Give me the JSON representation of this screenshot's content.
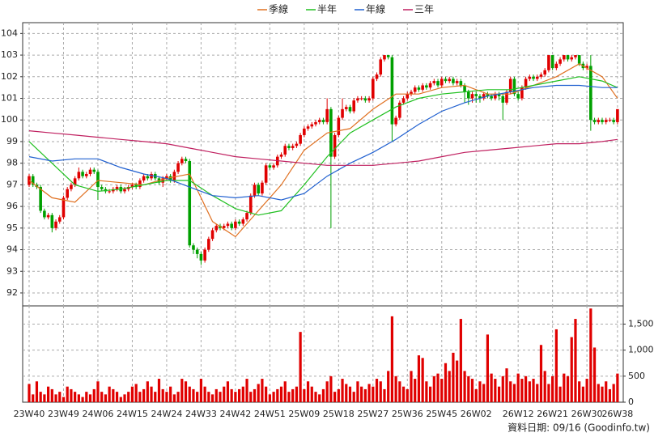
{
  "chart_data": [
    {
      "type": "candlestick",
      "categories": [
        "23W40",
        null,
        null,
        null,
        null,
        null,
        null,
        null,
        null,
        "23W49",
        null,
        null,
        null,
        null,
        null,
        null,
        null,
        null,
        "24W06",
        null,
        null,
        null,
        null,
        null,
        null,
        null,
        null,
        "24W15",
        null,
        null,
        null,
        null,
        null,
        null,
        null,
        null,
        "24W24",
        null,
        null,
        null,
        null,
        null,
        null,
        null,
        null,
        "24W33",
        null,
        null,
        null,
        null,
        null,
        null,
        null,
        null,
        "24W42",
        null,
        null,
        null,
        null,
        null,
        null,
        null,
        null,
        "24W51",
        null,
        null,
        null,
        null,
        null,
        null,
        null,
        null,
        "25W09",
        null,
        null,
        null,
        null,
        null,
        null,
        null,
        null,
        "25W18",
        null,
        null,
        null,
        null,
        null,
        null,
        null,
        null,
        "25W27",
        null,
        null,
        null,
        null,
        null,
        null,
        null,
        null,
        "25W36",
        null,
        null,
        null,
        null,
        null,
        null,
        null,
        null,
        "25W45",
        null,
        null,
        null,
        null,
        null,
        null,
        null,
        null,
        "26W02",
        null,
        null,
        null,
        null,
        null,
        null,
        null,
        null,
        null,
        null,
        "26W12",
        null,
        null,
        null,
        null,
        null,
        null,
        null,
        null,
        "26W21",
        null,
        null,
        null,
        null,
        null,
        null,
        null,
        null,
        "26W30",
        null,
        null,
        null,
        null,
        null,
        null,
        null,
        "26W38"
      ],
      "open": [
        97.0,
        97.4,
        97.0,
        96.9,
        95.8,
        95.5,
        95.6,
        95.0,
        95.3,
        95.5,
        96.4,
        96.8,
        97.0,
        97.3,
        97.6,
        97.4,
        97.5,
        97.7,
        97.6,
        96.9,
        96.8,
        96.7,
        96.7,
        96.8,
        96.9,
        96.7,
        96.8,
        96.9,
        97.0,
        96.9,
        97.2,
        97.4,
        97.3,
        97.5,
        97.3,
        97.1,
        97.3,
        97.4,
        97.2,
        97.6,
        98.0,
        98.2,
        98.1,
        94.2,
        94.0,
        93.8,
        93.5,
        94.0,
        94.5,
        94.9,
        95.1,
        95.0,
        95.1,
        95.2,
        95.0,
        95.3,
        95.2,
        95.4,
        95.7,
        96.5,
        97.0,
        96.6,
        97.1,
        97.9,
        97.8,
        97.9,
        98.3,
        98.4,
        98.8,
        98.7,
        98.8,
        98.9,
        99.3,
        99.6,
        99.7,
        99.8,
        99.9,
        100.0,
        99.9,
        100.5,
        98.3,
        99.3,
        100.1,
        100.5,
        100.6,
        100.4,
        100.9,
        101.0,
        101.0,
        100.9,
        101.0,
        101.9,
        102.1,
        102.8,
        103.0,
        102.9,
        99.8,
        100.1,
        100.8,
        101.0,
        101.2,
        101.3,
        101.5,
        101.4,
        101.6,
        101.5,
        101.7,
        101.8,
        101.6,
        101.9,
        101.8,
        101.9,
        101.7,
        101.8,
        101.6,
        101.3,
        101.0,
        101.2,
        101.1,
        101.0,
        101.2,
        101.1,
        101.0,
        101.2,
        101.1,
        100.8,
        101.3,
        101.9,
        101.2,
        101.0,
        101.5,
        101.9,
        102.0,
        101.9,
        102.0,
        102.1,
        102.3,
        103.0,
        102.4,
        102.6,
        102.8,
        103.0,
        102.8,
        102.9,
        103.0,
        102.6,
        102.4,
        102.5,
        100.0,
        99.9,
        100.0,
        99.9,
        100.0,
        100.0,
        99.9
      ],
      "high": [
        97.5,
        97.5,
        97.1,
        97.0,
        95.9,
        95.7,
        95.7,
        95.4,
        95.6,
        96.5,
        96.9,
        97.1,
        97.4,
        97.8,
        97.7,
        97.6,
        97.8,
        97.8,
        97.7,
        97.0,
        96.9,
        96.8,
        96.9,
        97.0,
        97.0,
        96.9,
        97.0,
        97.1,
        97.1,
        97.3,
        97.5,
        97.5,
        97.6,
        97.6,
        97.4,
        97.4,
        97.5,
        97.5,
        97.7,
        98.1,
        98.3,
        98.3,
        98.2,
        94.3,
        94.1,
        93.9,
        94.1,
        94.6,
        95.0,
        95.2,
        95.2,
        95.2,
        95.3,
        95.3,
        95.4,
        95.4,
        95.5,
        95.8,
        96.6,
        97.1,
        97.1,
        97.2,
        98.0,
        98.0,
        98.0,
        98.4,
        98.5,
        98.9,
        98.9,
        98.9,
        99.0,
        99.4,
        99.7,
        99.8,
        99.9,
        100.0,
        100.1,
        100.1,
        101.0,
        100.6,
        99.4,
        100.2,
        101.0,
        100.7,
        100.7,
        101.0,
        101.1,
        101.1,
        101.1,
        101.1,
        102.0,
        102.2,
        102.9,
        103.0,
        103.0,
        103.0,
        100.2,
        100.9,
        101.1,
        101.3,
        101.4,
        101.6,
        101.6,
        101.7,
        101.7,
        101.8,
        101.9,
        101.9,
        102.0,
        102.0,
        102.0,
        102.0,
        101.9,
        101.9,
        101.7,
        101.4,
        101.3,
        101.3,
        101.2,
        101.3,
        101.3,
        101.2,
        101.3,
        101.3,
        101.2,
        101.4,
        102.0,
        102.0,
        101.3,
        101.6,
        102.0,
        102.1,
        102.1,
        102.1,
        102.2,
        102.4,
        103.0,
        103.0,
        102.7,
        102.9,
        103.0,
        103.0,
        103.0,
        103.0,
        103.0,
        102.7,
        102.6,
        103.0,
        100.1,
        100.1,
        100.1,
        100.1,
        100.1,
        100.1,
        100.5
      ],
      "low": [
        96.9,
        96.9,
        96.8,
        95.7,
        95.4,
        95.4,
        94.8,
        94.9,
        95.2,
        95.4,
        96.3,
        96.7,
        96.9,
        97.2,
        97.3,
        97.3,
        97.4,
        97.5,
        96.3,
        96.7,
        96.6,
        96.6,
        96.6,
        96.7,
        96.6,
        96.6,
        96.7,
        96.8,
        96.8,
        96.8,
        97.1,
        97.2,
        97.2,
        97.2,
        97.0,
        96.9,
        97.2,
        97.1,
        97.1,
        97.5,
        97.9,
        98.0,
        94.1,
        93.8,
        93.6,
        93.3,
        93.4,
        93.9,
        94.4,
        94.8,
        94.9,
        94.9,
        95.0,
        94.9,
        94.9,
        95.1,
        95.1,
        95.3,
        95.6,
        96.4,
        96.5,
        96.5,
        97.0,
        97.7,
        97.7,
        97.8,
        98.2,
        98.3,
        98.6,
        98.6,
        98.7,
        98.8,
        99.2,
        99.5,
        99.6,
        99.7,
        99.8,
        99.8,
        99.8,
        95.0,
        98.2,
        99.2,
        100.0,
        100.4,
        100.3,
        100.3,
        100.8,
        100.9,
        100.8,
        100.8,
        100.9,
        101.8,
        102.0,
        102.7,
        102.8,
        99.0,
        99.7,
        100.0,
        100.7,
        100.9,
        101.1,
        101.2,
        101.3,
        101.3,
        101.4,
        101.4,
        101.6,
        101.5,
        101.5,
        101.7,
        101.7,
        101.6,
        101.6,
        101.5,
        100.8,
        100.7,
        100.8,
        100.8,
        100.8,
        100.9,
        101.0,
        100.9,
        100.9,
        100.9,
        100.0,
        100.7,
        101.2,
        101.1,
        100.9,
        100.9,
        101.4,
        101.8,
        101.8,
        101.8,
        101.9,
        102.0,
        102.2,
        102.3,
        102.3,
        102.5,
        102.7,
        102.7,
        102.7,
        102.8,
        102.5,
        102.3,
        102.3,
        99.5,
        99.8,
        99.8,
        99.8,
        99.8,
        99.9,
        99.8,
        99.8
      ],
      "close": [
        97.4,
        97.0,
        96.9,
        95.8,
        95.5,
        95.6,
        95.0,
        95.3,
        95.5,
        96.4,
        96.8,
        97.0,
        97.3,
        97.6,
        97.4,
        97.5,
        97.7,
        97.6,
        96.9,
        96.8,
        96.7,
        96.7,
        96.8,
        96.9,
        96.7,
        96.8,
        96.9,
        97.0,
        96.9,
        97.2,
        97.4,
        97.3,
        97.5,
        97.3,
        97.1,
        97.3,
        97.4,
        97.2,
        97.6,
        98.0,
        98.2,
        98.1,
        94.2,
        94.0,
        93.8,
        93.5,
        94.0,
        94.5,
        94.9,
        95.1,
        95.0,
        95.1,
        95.2,
        95.0,
        95.3,
        95.2,
        95.4,
        95.7,
        96.5,
        97.0,
        96.6,
        97.1,
        97.9,
        97.8,
        97.9,
        98.3,
        98.4,
        98.8,
        98.7,
        98.8,
        98.9,
        99.3,
        99.6,
        99.7,
        99.8,
        99.9,
        100.0,
        99.9,
        100.5,
        98.3,
        99.3,
        100.1,
        100.5,
        100.6,
        100.4,
        100.9,
        101.0,
        101.0,
        100.9,
        101.0,
        101.9,
        102.1,
        102.8,
        103.0,
        102.9,
        99.8,
        100.1,
        100.8,
        101.0,
        101.2,
        101.3,
        101.5,
        101.4,
        101.6,
        101.5,
        101.7,
        101.8,
        101.6,
        101.9,
        101.8,
        101.9,
        101.7,
        101.8,
        101.6,
        101.3,
        101.0,
        101.2,
        101.1,
        101.0,
        101.2,
        101.1,
        101.0,
        101.2,
        101.1,
        100.8,
        101.3,
        101.9,
        101.2,
        101.0,
        101.5,
        101.9,
        102.0,
        101.9,
        102.0,
        102.1,
        102.3,
        103.0,
        102.4,
        102.6,
        102.8,
        103.0,
        102.8,
        102.9,
        103.0,
        102.6,
        102.4,
        102.5,
        100.0,
        99.9,
        100.0,
        99.9,
        100.0,
        100.0,
        99.9,
        100.5
      ],
      "colors": {
        "up": "#e00000",
        "down": "#00a000"
      },
      "series": [
        {
          "name": "季線",
          "color": "#e07020",
          "x": [
            0,
            6,
            12,
            18,
            24,
            30,
            36,
            42,
            48,
            54,
            60,
            66,
            72,
            78,
            84,
            90,
            96,
            102,
            108,
            114,
            120,
            126,
            132,
            138,
            144,
            150,
            154
          ],
          "values": [
            97.2,
            96.4,
            96.2,
            97.2,
            97.1,
            97.0,
            97.3,
            97.5,
            95.3,
            94.6,
            95.8,
            97.0,
            98.6,
            99.4,
            99.6,
            100.5,
            101.2,
            101.2,
            101.5,
            101.6,
            101.2,
            101.2,
            101.6,
            102.0,
            102.6,
            102.0,
            101.0
          ]
        },
        {
          "name": "半年",
          "color": "#20c020",
          "x": [
            0,
            6,
            12,
            18,
            24,
            30,
            36,
            42,
            48,
            54,
            60,
            66,
            72,
            78,
            84,
            90,
            96,
            102,
            108,
            114,
            120,
            126,
            132,
            138,
            144,
            150,
            154
          ],
          "values": [
            99.0,
            98.0,
            97.0,
            96.7,
            96.8,
            97.0,
            97.2,
            97.2,
            96.5,
            95.9,
            95.6,
            95.8,
            97.0,
            98.3,
            99.4,
            100.0,
            100.6,
            101.0,
            101.2,
            101.3,
            101.4,
            101.4,
            101.6,
            101.8,
            102.0,
            101.8,
            101.5
          ]
        },
        {
          "name": "年線",
          "color": "#2060d0",
          "x": [
            0,
            6,
            12,
            18,
            24,
            30,
            36,
            42,
            48,
            54,
            60,
            66,
            72,
            78,
            84,
            90,
            96,
            102,
            108,
            114,
            120,
            126,
            132,
            138,
            144,
            150,
            154
          ],
          "values": [
            98.3,
            98.1,
            98.2,
            98.2,
            97.8,
            97.5,
            97.3,
            96.9,
            96.5,
            96.4,
            96.5,
            96.3,
            96.6,
            97.4,
            98.0,
            98.5,
            99.1,
            99.8,
            100.4,
            100.8,
            101.1,
            101.3,
            101.5,
            101.6,
            101.6,
            101.5,
            101.5
          ]
        },
        {
          "name": "三年",
          "color": "#c02060",
          "x": [
            0,
            6,
            12,
            18,
            24,
            30,
            36,
            42,
            48,
            54,
            60,
            66,
            72,
            78,
            84,
            90,
            96,
            102,
            108,
            114,
            120,
            126,
            132,
            138,
            144,
            150,
            154
          ],
          "values": [
            99.5,
            99.4,
            99.3,
            99.2,
            99.1,
            99.0,
            98.9,
            98.7,
            98.5,
            98.3,
            98.2,
            98.1,
            98.0,
            97.9,
            97.9,
            97.9,
            98.0,
            98.1,
            98.3,
            98.5,
            98.6,
            98.7,
            98.8,
            98.9,
            98.9,
            99.0,
            99.1
          ]
        }
      ],
      "ylim": [
        91.4,
        104.5
      ],
      "yticks": [
        92,
        93,
        94,
        95,
        96,
        97,
        98,
        99,
        100,
        101,
        102,
        103,
        104
      ],
      "grid": true,
      "note": "資料日期: 09/16 (Goodinfo.tw)"
    },
    {
      "type": "bar",
      "values": [
        350,
        150,
        400,
        200,
        150,
        300,
        250,
        150,
        200,
        100,
        300,
        250,
        200,
        150,
        100,
        200,
        150,
        250,
        400,
        200,
        150,
        300,
        250,
        200,
        100,
        150,
        200,
        300,
        350,
        200,
        250,
        400,
        300,
        200,
        450,
        250,
        200,
        300,
        150,
        200,
        450,
        400,
        300,
        250,
        200,
        450,
        300,
        200,
        150,
        250,
        200,
        300,
        400,
        250,
        200,
        250,
        300,
        450,
        200,
        250,
        350,
        450,
        300,
        150,
        200,
        250,
        300,
        400,
        200,
        250,
        300,
        1350,
        250,
        400,
        300,
        200,
        150,
        250,
        400,
        500,
        200,
        250,
        450,
        350,
        300,
        200,
        400,
        300,
        250,
        350,
        300,
        450,
        400,
        250,
        600,
        1650,
        500,
        400,
        300,
        250,
        600,
        450,
        900,
        850,
        400,
        300,
        500,
        550,
        450,
        750,
        600,
        950,
        800,
        1600,
        600,
        500,
        450,
        250,
        400,
        350,
        1300,
        550,
        450,
        300,
        500,
        650,
        400,
        350,
        550,
        450,
        500,
        400,
        450,
        350,
        1100,
        600,
        350,
        500,
        1400,
        300,
        550,
        500,
        1250,
        1600,
        400,
        300,
        450,
        1800,
        1050,
        350,
        300,
        400,
        250,
        350,
        550
      ],
      "color": "#e00000",
      "ylim": [
        0,
        1850
      ],
      "yticks": [
        0,
        500,
        {
          "value": 1000,
          "label": "1,000"
        },
        {
          "value": 1500,
          "label": "1,500"
        }
      ],
      "grid": true
    }
  ]
}
